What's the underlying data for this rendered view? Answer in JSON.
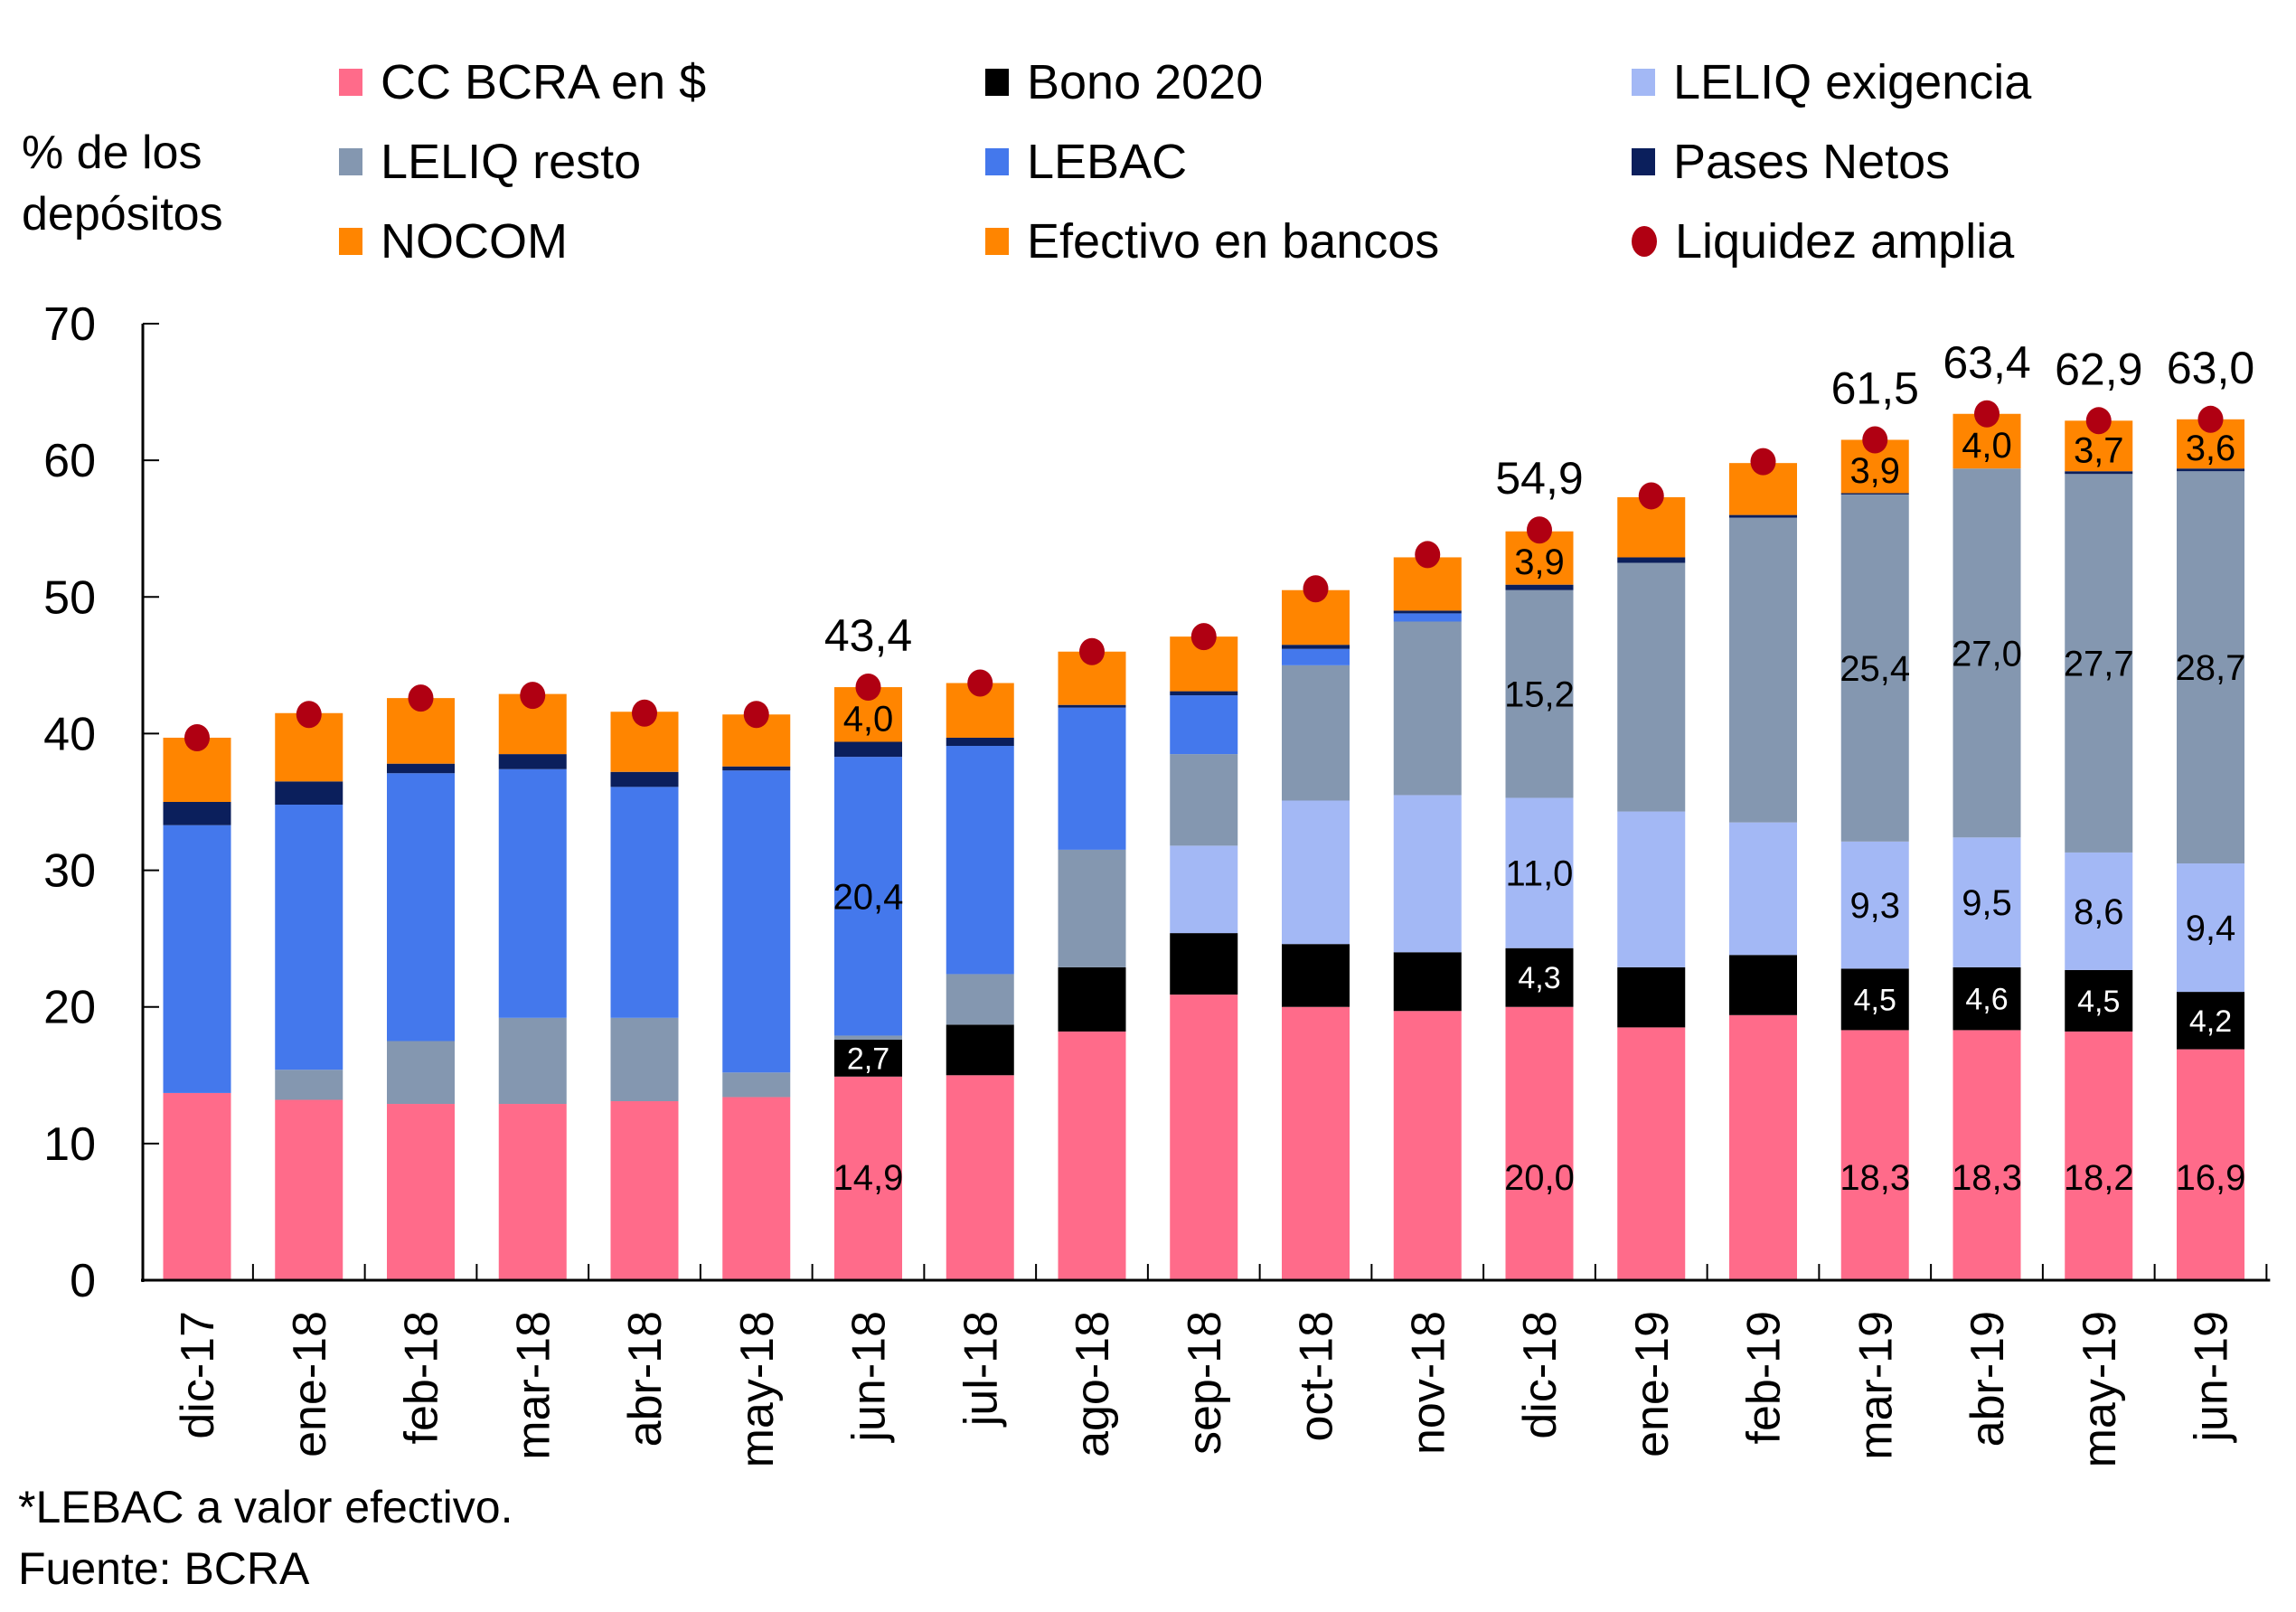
{
  "chart_data": {
    "type": "bar",
    "stacked": true,
    "title": "",
    "ylabel": "% de los\ndepósitos",
    "xlabel": "",
    "ylim": [
      0,
      70
    ],
    "yticks": [
      0,
      10,
      20,
      30,
      40,
      50,
      60,
      70
    ],
    "grid": false,
    "legend_position": "top",
    "categories": [
      "dic-17",
      "ene-18",
      "feb-18",
      "mar-18",
      "abr-18",
      "may-18",
      "jun-18",
      "jul-18",
      "ago-18",
      "sep-18",
      "oct-18",
      "nov-18",
      "dic-18",
      "ene-19",
      "feb-19",
      "mar-19",
      "abr-19",
      "may-19",
      "jun-19"
    ],
    "series": [
      {
        "name": "CC BCRA en $",
        "color": "#ff6b8a",
        "values": [
          13.7,
          13.2,
          12.9,
          12.9,
          13.1,
          13.4,
          14.9,
          15.0,
          18.2,
          20.9,
          20.0,
          19.7,
          20.0,
          18.5,
          19.4,
          18.3,
          18.3,
          18.2,
          16.9
        ]
      },
      {
        "name": "Bono 2020",
        "color": "#000000",
        "values": [
          0,
          0,
          0,
          0,
          0,
          0,
          2.7,
          3.7,
          4.7,
          4.5,
          4.6,
          4.3,
          4.3,
          4.4,
          4.4,
          4.5,
          4.6,
          4.5,
          4.2
        ]
      },
      {
        "name": "LELIQ exigencia",
        "color": "#a3b8f5",
        "values": [
          0,
          0,
          0,
          0,
          0,
          0,
          0,
          0,
          0,
          6.4,
          10.5,
          11.5,
          11.0,
          11.4,
          9.7,
          9.3,
          9.5,
          8.6,
          9.4
        ]
      },
      {
        "name": "LELIQ resto",
        "color": "#8497b0",
        "values": [
          0,
          2.2,
          4.6,
          6.3,
          6.1,
          1.8,
          0.3,
          3.7,
          8.6,
          6.7,
          9.9,
          12.7,
          15.2,
          18.2,
          22.3,
          25.4,
          27.0,
          27.7,
          28.7
        ]
      },
      {
        "name": "LEBAC",
        "color": "#4478ec",
        "values": [
          19.6,
          19.4,
          19.6,
          18.2,
          16.9,
          22.1,
          20.4,
          16.7,
          10.4,
          4.3,
          1.2,
          0.6,
          0,
          0,
          0,
          0,
          0,
          0,
          0
        ]
      },
      {
        "name": "Pases Netos",
        "color": "#0b1f5c",
        "values": [
          1.7,
          1.7,
          0.7,
          1.1,
          1.1,
          0.3,
          1.1,
          0.6,
          0.2,
          0.3,
          0.3,
          0.2,
          0.4,
          0.4,
          0.2,
          0.1,
          0.0,
          0.2,
          0.2
        ]
      },
      {
        "name": "NOCOM",
        "color": "#ff8500",
        "values": [
          4.7,
          5.0,
          4.8,
          4.4,
          4.4,
          3.8,
          4.0,
          4.0,
          3.9,
          4.0,
          4.0,
          3.9,
          3.9,
          4.4,
          3.8,
          3.9,
          4.0,
          3.7,
          3.6
        ]
      },
      {
        "name": "Efectivo en bancos",
        "color": "#ff8500",
        "values": [
          0,
          0,
          0,
          0,
          0,
          0,
          0,
          0,
          0,
          0,
          0,
          0,
          0,
          0,
          0,
          0,
          0,
          0,
          0
        ]
      }
    ],
    "marker_series": {
      "name": "Liquidez amplia",
      "color": "#b00012",
      "values": [
        39.7,
        41.4,
        42.6,
        42.8,
        41.5,
        41.4,
        43.4,
        43.7,
        46.0,
        47.1,
        50.6,
        53.1,
        54.9,
        57.4,
        59.9,
        61.5,
        63.4,
        62.9,
        63.0
      ]
    },
    "data_labels": [
      {
        "category": "jun-18",
        "series": "CC BCRA en $",
        "text": "14,9"
      },
      {
        "category": "jun-18",
        "series": "Bono 2020",
        "text": "2,7"
      },
      {
        "category": "jun-18",
        "series": "LEBAC",
        "text": "20,4"
      },
      {
        "category": "jun-18",
        "series": "NOCOM",
        "text": "4,0"
      },
      {
        "category": "jun-18",
        "series": "Liquidez amplia",
        "text": "43,4"
      },
      {
        "category": "dic-18",
        "series": "CC BCRA en $",
        "text": "20,0"
      },
      {
        "category": "dic-18",
        "series": "Bono 2020",
        "text": "4,3"
      },
      {
        "category": "dic-18",
        "series": "LELIQ exigencia",
        "text": "11,0"
      },
      {
        "category": "dic-18",
        "series": "LELIQ resto",
        "text": "15,2"
      },
      {
        "category": "dic-18",
        "series": "NOCOM",
        "text": "3,9"
      },
      {
        "category": "dic-18",
        "series": "Liquidez amplia",
        "text": "54,9"
      },
      {
        "category": "mar-19",
        "series": "CC BCRA en $",
        "text": "18,3"
      },
      {
        "category": "mar-19",
        "series": "Bono 2020",
        "text": "4,5"
      },
      {
        "category": "mar-19",
        "series": "LELIQ exigencia",
        "text": "9,3"
      },
      {
        "category": "mar-19",
        "series": "LELIQ resto",
        "text": "25,4"
      },
      {
        "category": "mar-19",
        "series": "NOCOM",
        "text": "3,9"
      },
      {
        "category": "mar-19",
        "series": "Liquidez amplia",
        "text": "61,5"
      },
      {
        "category": "abr-19",
        "series": "CC BCRA en $",
        "text": "18,3"
      },
      {
        "category": "abr-19",
        "series": "Bono 2020",
        "text": "4,6"
      },
      {
        "category": "abr-19",
        "series": "LELIQ exigencia",
        "text": "9,5"
      },
      {
        "category": "abr-19",
        "series": "LELIQ resto",
        "text": "27,0"
      },
      {
        "category": "abr-19",
        "series": "NOCOM",
        "text": "4,0"
      },
      {
        "category": "abr-19",
        "series": "Liquidez amplia",
        "text": "63,4"
      },
      {
        "category": "may-19",
        "series": "CC BCRA en $",
        "text": "18,2"
      },
      {
        "category": "may-19",
        "series": "Bono 2020",
        "text": "4,5"
      },
      {
        "category": "may-19",
        "series": "LELIQ exigencia",
        "text": "8,6"
      },
      {
        "category": "may-19",
        "series": "LELIQ resto",
        "text": "27,7"
      },
      {
        "category": "may-19",
        "series": "NOCOM",
        "text": "3,7"
      },
      {
        "category": "may-19",
        "series": "Liquidez amplia",
        "text": "62,9"
      },
      {
        "category": "jun-19",
        "series": "CC BCRA en $",
        "text": "16,9"
      },
      {
        "category": "jun-19",
        "series": "Bono 2020",
        "text": "4,2"
      },
      {
        "category": "jun-19",
        "series": "LELIQ exigencia",
        "text": "9,4"
      },
      {
        "category": "jun-19",
        "series": "LELIQ resto",
        "text": "28,7"
      },
      {
        "category": "jun-19",
        "series": "NOCOM",
        "text": "3,6"
      },
      {
        "category": "jun-19",
        "series": "Liquidez amplia",
        "text": "63,0"
      }
    ],
    "footnotes": [
      "*LEBAC a valor efectivo.",
      "Fuente: BCRA"
    ]
  },
  "legend": [
    {
      "label": "CC BCRA en $",
      "color": "#ff6b8a",
      "shape": "square"
    },
    {
      "label": "Bono 2020",
      "color": "#000000",
      "shape": "square"
    },
    {
      "label": "LELIQ exigencia",
      "color": "#a3b8f5",
      "shape": "square"
    },
    {
      "label": "LELIQ resto",
      "color": "#8497b0",
      "shape": "square"
    },
    {
      "label": "LEBAC",
      "color": "#4478ec",
      "shape": "square"
    },
    {
      "label": "Pases Netos",
      "color": "#0b1f5c",
      "shape": "square"
    },
    {
      "label": "NOCOM",
      "color": "#ff8500",
      "shape": "square"
    },
    {
      "label": "Efectivo en bancos",
      "color": "#ff8500",
      "shape": "square"
    },
    {
      "label": "Liquidez amplia",
      "color": "#b00012",
      "shape": "circle"
    }
  ],
  "ytitle": "% de los\ndepósitos",
  "footnote_1": "*LEBAC a valor efectivo.",
  "footnote_2": "Fuente: BCRA"
}
